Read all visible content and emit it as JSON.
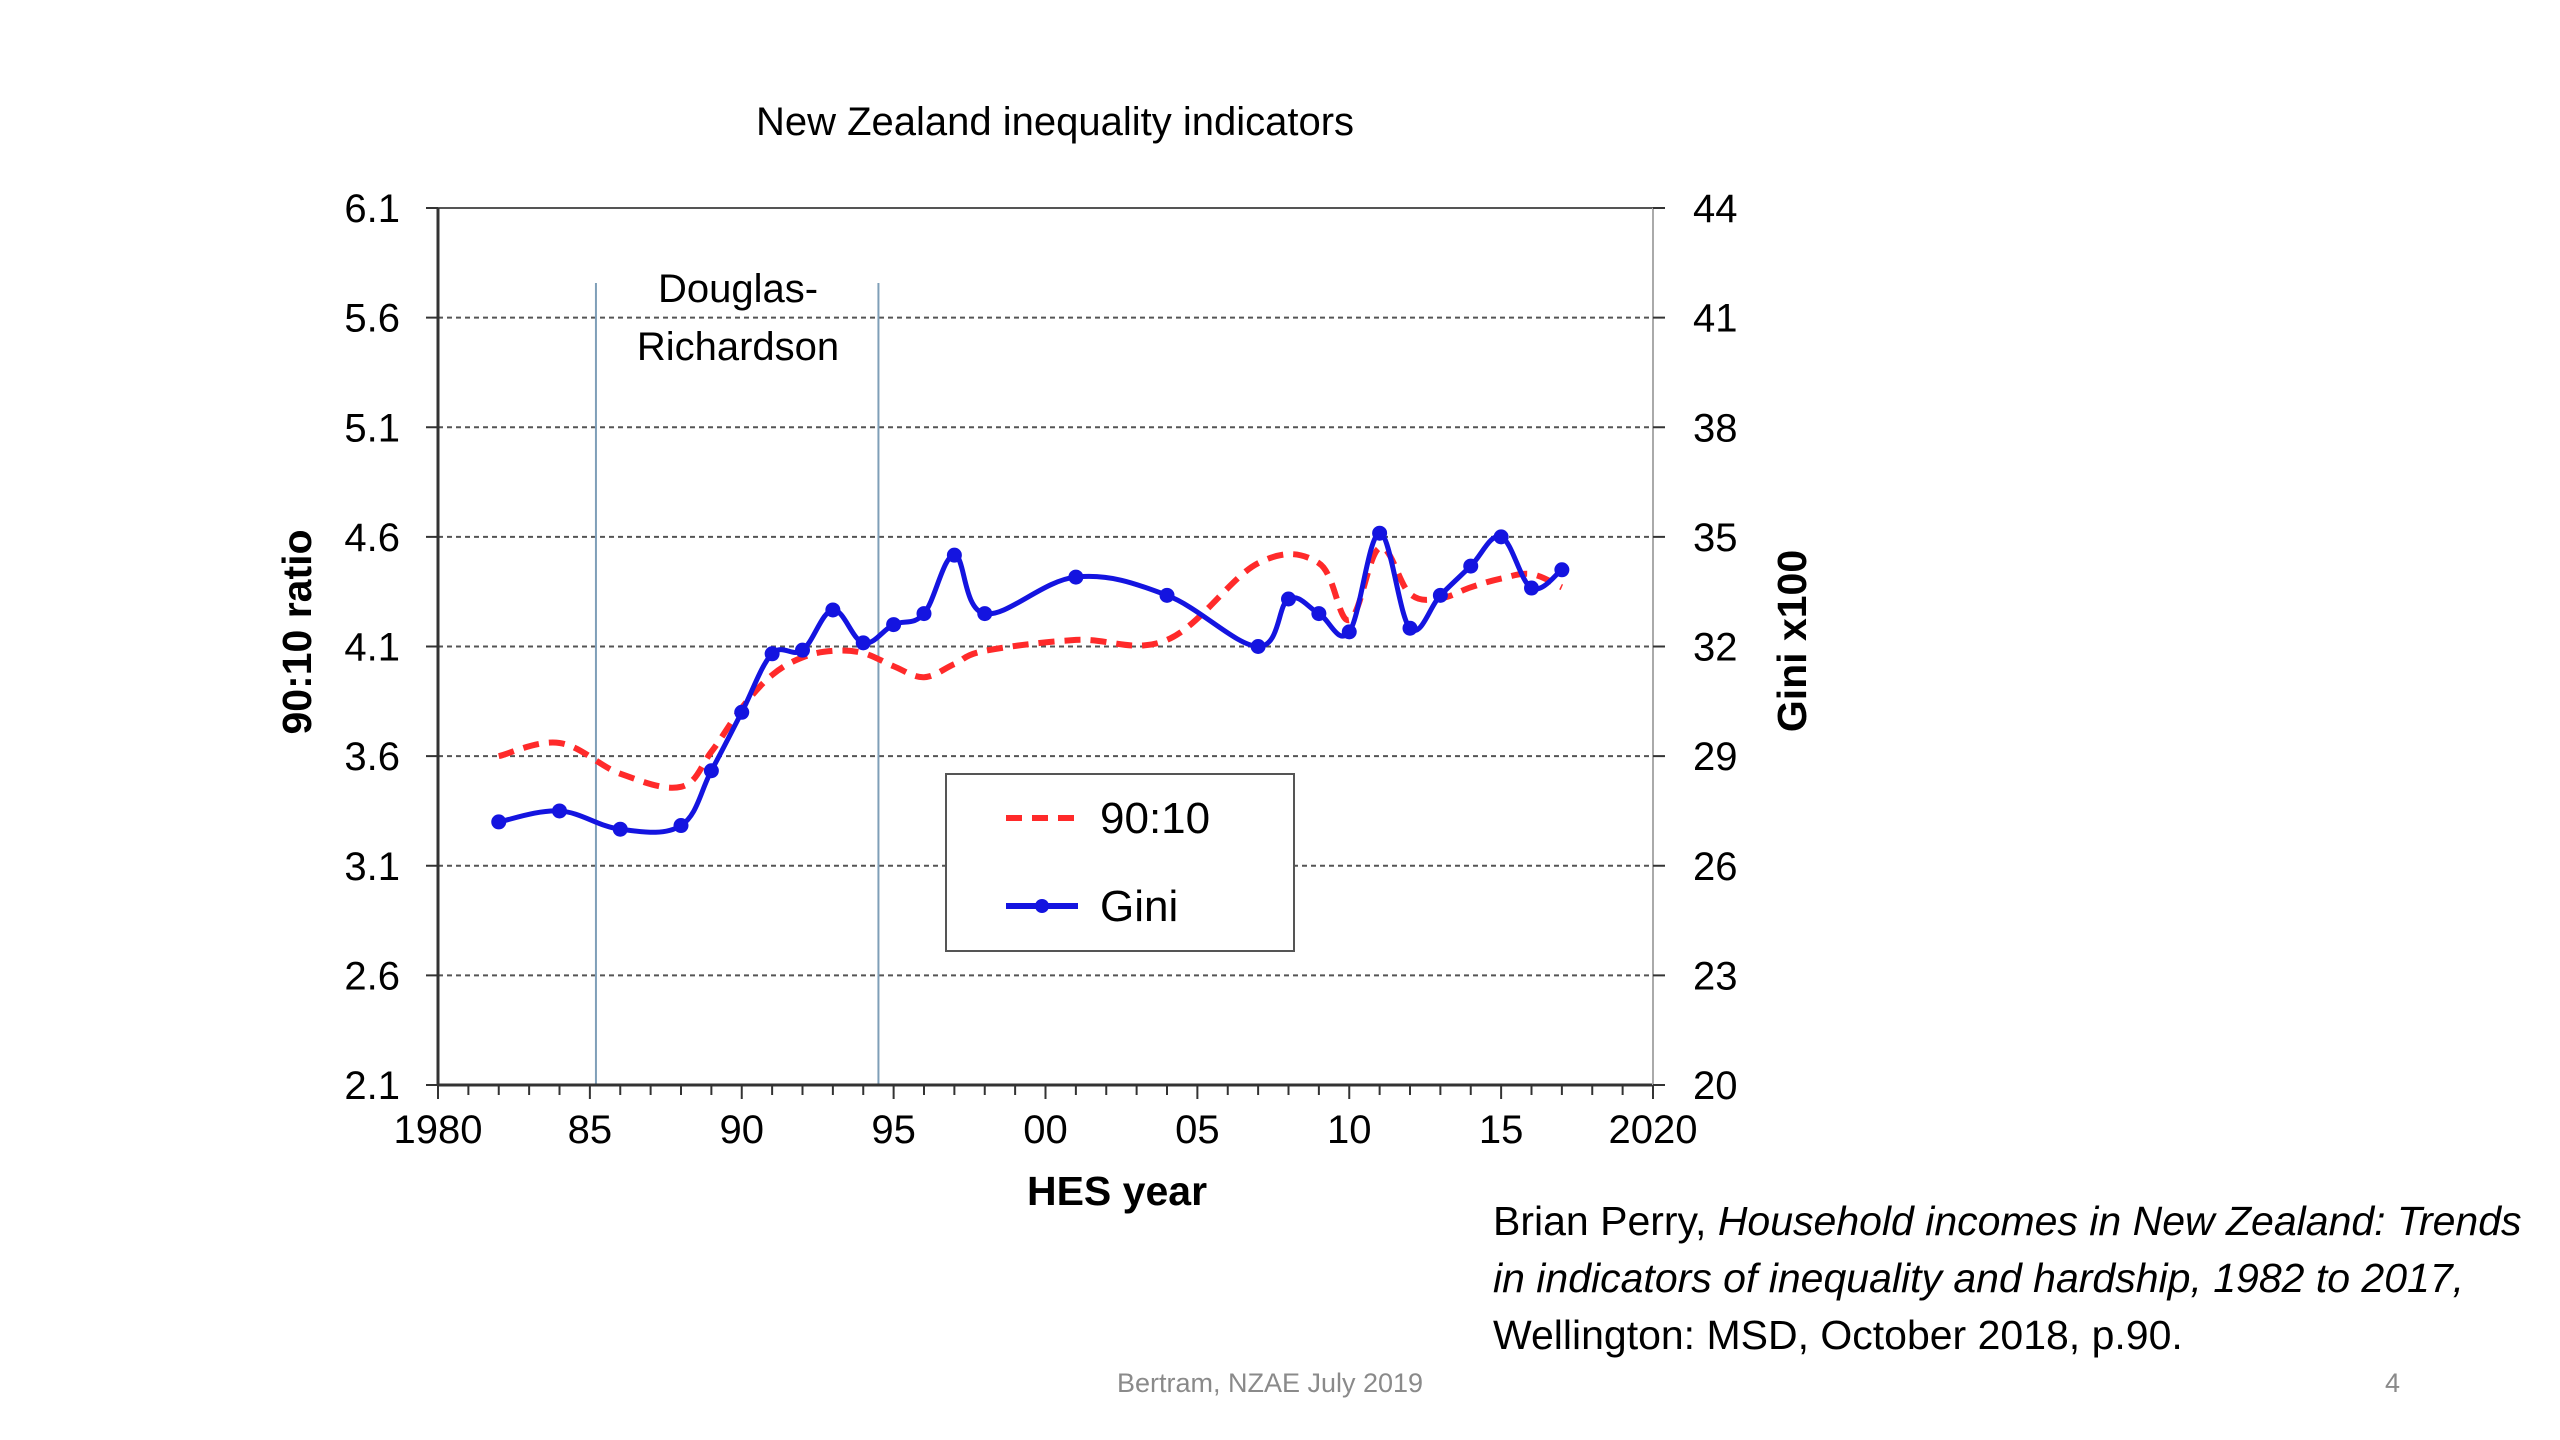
{
  "chart_data": {
    "type": "line",
    "title": "New Zealand inequality indicators",
    "xlabel": "HES year",
    "ylabel_left": "90:10 ratio",
    "ylabel_right": "Gini x100",
    "xlim": [
      1980,
      2020
    ],
    "ylim_left": [
      2.1,
      6.1
    ],
    "ylim_right": [
      20,
      44
    ],
    "x_ticks": [
      {
        "value": 1980,
        "label": "1980"
      },
      {
        "value": 1985,
        "label": "85"
      },
      {
        "value": 1990,
        "label": "90"
      },
      {
        "value": 1995,
        "label": "95"
      },
      {
        "value": 2000,
        "label": "00"
      },
      {
        "value": 2005,
        "label": "05"
      },
      {
        "value": 2010,
        "label": "10"
      },
      {
        "value": 2015,
        "label": "15"
      },
      {
        "value": 2020,
        "label": "2020"
      }
    ],
    "y_left_ticks": [
      "2.1",
      "2.6",
      "3.1",
      "3.6",
      "4.1",
      "4.6",
      "5.1",
      "5.6",
      "6.1"
    ],
    "y_right_ticks": [
      "20",
      "23",
      "26",
      "29",
      "32",
      "35",
      "38",
      "41",
      "44"
    ],
    "grid": "horizontal dashed",
    "legend_position": "center",
    "annotation": {
      "lines": [
        "Douglas-",
        "Richardson"
      ],
      "period": [
        1985.2,
        1994.5
      ]
    },
    "series": [
      {
        "name": "90:10",
        "axis": "left",
        "style": "dashed",
        "color": "#ff2a2a",
        "x": [
          1982,
          1984,
          1986,
          1988,
          1989,
          1990,
          1991,
          1992,
          1993,
          1994,
          1995,
          1996,
          1997,
          1998,
          2001,
          2004,
          2007,
          2009,
          2010,
          2011,
          2012,
          2013,
          2014,
          2015,
          2016,
          2017
        ],
        "values": [
          3.6,
          3.66,
          3.52,
          3.46,
          3.62,
          3.82,
          3.97,
          4.05,
          4.08,
          4.07,
          4.01,
          3.96,
          4.02,
          4.08,
          4.13,
          4.13,
          4.48,
          4.48,
          4.22,
          4.55,
          4.34,
          4.32,
          4.37,
          4.41,
          4.43,
          4.37
        ]
      },
      {
        "name": "Gini",
        "axis": "right",
        "style": "solid-markers",
        "color": "#1414e0",
        "x": [
          1982,
          1984,
          1986,
          1988,
          1989,
          1990,
          1991,
          1992,
          1993,
          1994,
          1995,
          1996,
          1997,
          1998,
          2001,
          2004,
          2007,
          2008,
          2009,
          2010,
          2011,
          2012,
          2013,
          2014,
          2015,
          2016,
          2017
        ],
        "values": [
          27.2,
          27.5,
          27.0,
          27.1,
          28.6,
          30.2,
          31.8,
          31.9,
          33.0,
          32.1,
          32.6,
          32.9,
          34.5,
          32.9,
          33.9,
          33.4,
          32.0,
          33.3,
          32.9,
          32.4,
          35.1,
          32.5,
          33.4,
          34.2,
          35.0,
          33.6,
          34.1
        ]
      }
    ]
  },
  "citation": {
    "author": "Brian Perry, ",
    "title": "Household incomes in New Zealand: Trends in indicators of inequality and hardship, 1982 to 2017,",
    "rest": " Wellington: MSD, October 2018, p.90."
  },
  "footer": {
    "text": "Bertram, NZAE July 2019",
    "page": "4"
  }
}
